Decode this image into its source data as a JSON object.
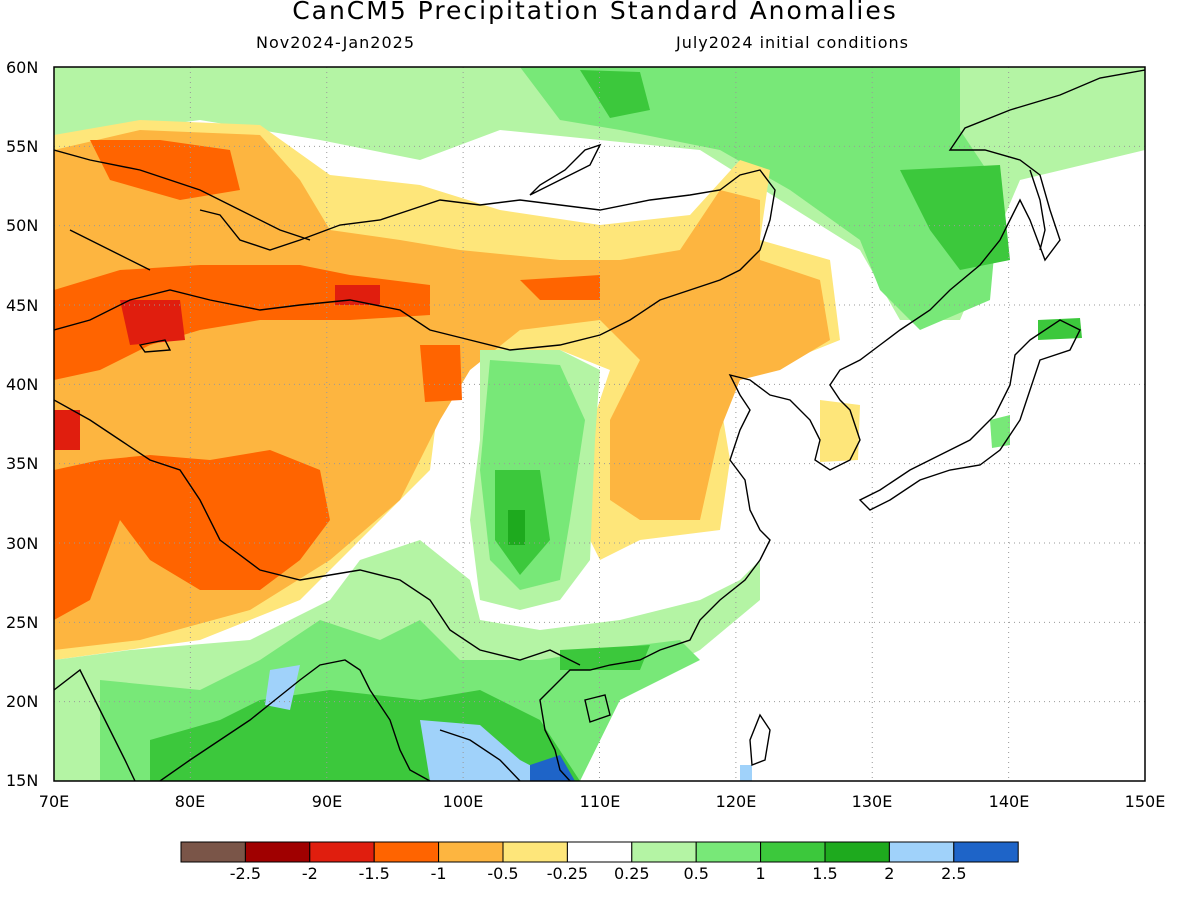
{
  "title": "CanCM5 Precipitation Standard Anomalies",
  "subtitle_left": "Nov2024-Jan2025",
  "subtitle_right": "July2024 initial conditions",
  "lat_labels": [
    "60N",
    "55N",
    "50N",
    "45N",
    "40N",
    "35N",
    "30N",
    "25N",
    "20N",
    "15N"
  ],
  "lon_labels": [
    "70E",
    "80E",
    "90E",
    "100E",
    "110E",
    "120E",
    "130E",
    "140E",
    "150E"
  ],
  "colorbar": {
    "colors": [
      "#7a5548",
      "#a00000",
      "#e01e0e",
      "#ff6400",
      "#fdb540",
      "#fee67a",
      "#ffffff",
      "#b4f4a4",
      "#78e878",
      "#3cc83c",
      "#1eaa1e",
      "#a0d2fa",
      "#1e64c8"
    ],
    "labels": [
      "-2.5",
      "-2",
      "-1.5",
      "-1",
      "-0.5",
      "-0.25",
      "0.25",
      "0.5",
      "1",
      "1.5",
      "2",
      "2.5"
    ]
  },
  "colors": {
    "neg_strong": "#e01e0e",
    "neg_mid": "#ff6400",
    "neg": "#fdb540",
    "neg_weak": "#fee67a",
    "pos_weak": "#b4f4a4",
    "pos": "#78e878",
    "pos_mid": "#3cc83c",
    "pos_strong": "#1eaa1e",
    "pos_vstrong": "#a0d2fa",
    "pos_max": "#1e64c8",
    "grid": "#999999",
    "coast": "#000000"
  }
}
